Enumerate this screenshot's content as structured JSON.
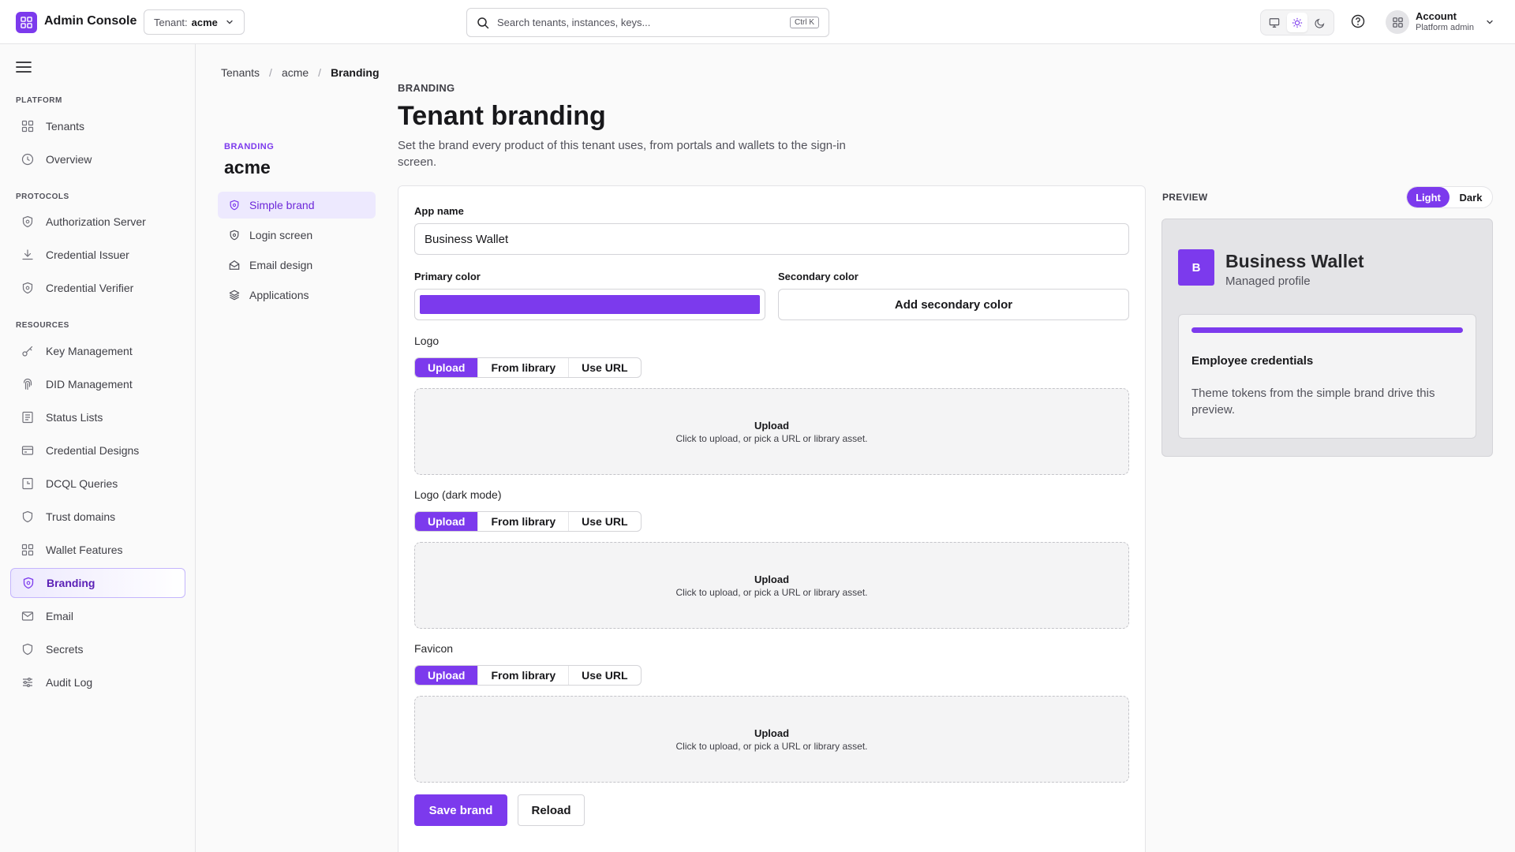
{
  "header": {
    "app_title": "Admin Console",
    "tenant_label": "Tenant:",
    "tenant_value": "acme",
    "search_placeholder": "Search tenants, instances, keys...",
    "search_shortcut": "Ctrl K",
    "account_name": "Account",
    "account_role": "Platform admin"
  },
  "sidebar": {
    "sections": [
      {
        "title": "PLATFORM",
        "items": [
          {
            "label": "Tenants",
            "icon": "grid-icon"
          },
          {
            "label": "Overview",
            "icon": "clock-icon"
          }
        ]
      },
      {
        "title": "PROTOCOLS",
        "items": [
          {
            "label": "Authorization Server",
            "icon": "shield-icon"
          },
          {
            "label": "Credential Issuer",
            "icon": "download-icon"
          },
          {
            "label": "Credential Verifier",
            "icon": "shield-icon"
          }
        ]
      },
      {
        "title": "RESOURCES",
        "items": [
          {
            "label": "Key Management",
            "icon": "key-icon"
          },
          {
            "label": "DID Management",
            "icon": "fingerprint-icon"
          },
          {
            "label": "Status Lists",
            "icon": "list-icon"
          },
          {
            "label": "Credential Designs",
            "icon": "card-icon"
          },
          {
            "label": "DCQL Queries",
            "icon": "query-icon"
          },
          {
            "label": "Trust domains",
            "icon": "shield-icon"
          },
          {
            "label": "Wallet Features",
            "icon": "grid-icon"
          },
          {
            "label": "Branding",
            "icon": "shield-icon",
            "active": true
          },
          {
            "label": "Email",
            "icon": "mail-icon"
          },
          {
            "label": "Secrets",
            "icon": "shield-icon"
          },
          {
            "label": "Audit Log",
            "icon": "sliders-icon"
          }
        ]
      }
    ]
  },
  "breadcrumb": [
    "Tenants",
    "acme",
    "Branding"
  ],
  "subnav": {
    "eyebrow": "BRANDING",
    "title": "acme",
    "items": [
      {
        "label": "Simple brand",
        "icon": "shield-icon",
        "active": true
      },
      {
        "label": "Login screen",
        "icon": "shield-icon"
      },
      {
        "label": "Email design",
        "icon": "mail-open-icon"
      },
      {
        "label": "Applications",
        "icon": "layers-icon"
      }
    ]
  },
  "page": {
    "eyebrow": "BRANDING",
    "title": "Tenant branding",
    "description": "Set the brand every product of this tenant uses, from portals and wallets to the sign-in screen."
  },
  "form": {
    "app_name_label": "App name",
    "app_name_value": "Business Wallet",
    "primary_color_label": "Primary color",
    "primary_color": "#7c3aed",
    "secondary_color_label": "Secondary color",
    "add_secondary_label": "Add secondary color",
    "assets": [
      {
        "label": "Logo",
        "tabs": [
          "Upload",
          "From library",
          "Use URL"
        ],
        "active_tab": "Upload",
        "drop_title": "Upload",
        "drop_hint": "Click to upload, or pick a URL or library asset."
      },
      {
        "label": "Logo (dark mode)",
        "tabs": [
          "Upload",
          "From library",
          "Use URL"
        ],
        "active_tab": "Upload",
        "drop_title": "Upload",
        "drop_hint": "Click to upload, or pick a URL or library asset."
      },
      {
        "label": "Favicon",
        "tabs": [
          "Upload",
          "From library",
          "Use URL"
        ],
        "active_tab": "Upload",
        "drop_title": "Upload",
        "drop_hint": "Click to upload, or pick a URL or library asset."
      }
    ],
    "save_label": "Save brand",
    "reload_label": "Reload"
  },
  "preview": {
    "label": "PREVIEW",
    "toggle": [
      "Light",
      "Dark"
    ],
    "active_mode": "Light",
    "logo_letter": "B",
    "app_name": "Business Wallet",
    "subtitle": "Managed profile",
    "card_title": "Employee credentials",
    "card_text": "Theme tokens from the simple brand drive this preview."
  },
  "colors": {
    "accent": "#7c3aed",
    "accent_soft": "#ede9fe"
  }
}
